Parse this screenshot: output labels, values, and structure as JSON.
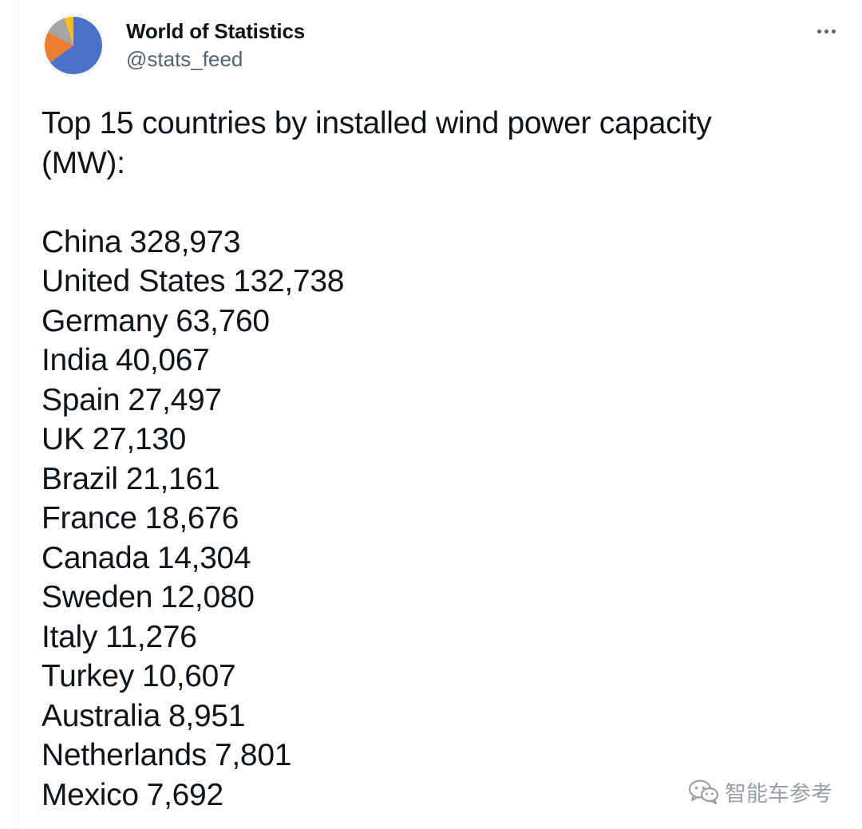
{
  "tweet": {
    "display_name": "World of Statistics",
    "handle": "@stats_feed",
    "heading": [
      "Top 15 countries by installed wind power capacity",
      "(MW):"
    ],
    "rows": [
      {
        "country": "China",
        "value": "328,973"
      },
      {
        "country": "United States",
        "value": "132,738"
      },
      {
        "country": "Germany",
        "value": "63,760"
      },
      {
        "country": "India",
        "value": "40,067"
      },
      {
        "country": "Spain",
        "value": "27,497"
      },
      {
        "country": "UK",
        "value": "27,130"
      },
      {
        "country": "Brazil",
        "value": "21,161"
      },
      {
        "country": "France",
        "value": "18,676"
      },
      {
        "country": "Canada",
        "value": "14,304"
      },
      {
        "country": "Sweden",
        "value": "12,080"
      },
      {
        "country": "Italy",
        "value": "11,276"
      },
      {
        "country": "Turkey",
        "value": "10,607"
      },
      {
        "country": "Australia",
        "value": "8,951"
      },
      {
        "country": "Netherlands",
        "value": "7,801"
      },
      {
        "country": "Mexico",
        "value": "7,692"
      }
    ]
  },
  "icons": {
    "avatar": "pie-chart-avatar",
    "more": "more-horizontal-icon",
    "watermark": "wechat-icon"
  },
  "avatar_colors": {
    "blue": "#4a72c8",
    "orange": "#ed7d31",
    "gray": "#a5a5a5",
    "yellow": "#ffc000"
  },
  "watermark": {
    "text": "智能车参考"
  }
}
